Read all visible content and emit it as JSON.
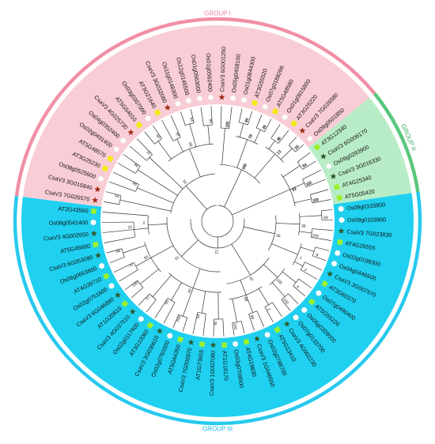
{
  "groups": [
    {
      "label": "GROUP I",
      "fill": "#f9cdd6",
      "ring": "#f08fa5",
      "text": "#e98099"
    },
    {
      "label": "GROUP II",
      "fill": "#b8ecc6",
      "ring": "#59c77c",
      "text": "#3cab5f"
    },
    {
      "label": "GROUP III",
      "fill": "#1fd0f0",
      "ring": "#27c9ee",
      "text": "#1ab6e0"
    }
  ],
  "markers": {
    "star": {
      "color": "#a02a14",
      "meaning": "red star"
    },
    "dark_star": {
      "color": "#2c5a2a",
      "meaning": "dark green star"
    },
    "square": {
      "color": "#f4ea12",
      "meaning": "yellow square"
    },
    "green_square": {
      "color": "#9df02c",
      "meaning": "green square"
    },
    "circle": {
      "color": "#ffffff",
      "meaning": "white circle"
    }
  },
  "leaves": [
    {
      "label": "CsaV3 6G001250",
      "marker": "star",
      "group": 0
    },
    {
      "label": "Os05g0458100",
      "marker": "circle",
      "group": 0
    },
    {
      "label": "Os01g0844300",
      "marker": "circle",
      "group": 0
    },
    {
      "label": "AT3G55520",
      "marker": "square",
      "group": 0
    },
    {
      "label": "Os07g0188266",
      "marker": "circle",
      "group": 0
    },
    {
      "label": "AT5G48580",
      "marker": "square",
      "group": 0
    },
    {
      "label": "Os01g0915800",
      "marker": "circle",
      "group": 0
    },
    {
      "label": "AT3G25220",
      "marker": "square",
      "group": 0
    },
    {
      "label": "CsaV3 7G026580",
      "marker": "star",
      "group": 0
    },
    {
      "label": "Os09g0501850",
      "marker": "circle",
      "group": 0
    },
    {
      "label": "AT3G12340",
      "marker": "green_square",
      "group": 1
    },
    {
      "label": "CsaV3 6G006170",
      "marker": "dark_star",
      "group": 1
    },
    {
      "label": "Os09g0293900",
      "marker": "circle",
      "group": 1
    },
    {
      "label": "CsaV3 3G016330",
      "marker": "dark_star",
      "group": 1
    },
    {
      "label": "AT4G25340",
      "marker": "green_square",
      "group": 1
    },
    {
      "label": "AT5G05420",
      "marker": "green_square",
      "group": 1
    },
    {
      "label": "Os09g0103800",
      "marker": "circle",
      "group": 2
    },
    {
      "label": "Os09g0103900",
      "marker": "circle",
      "group": 2
    },
    {
      "label": "CsaV3 7G023830",
      "marker": "dark_star",
      "group": 2
    },
    {
      "label": "AT4G26555",
      "marker": "green_square",
      "group": 2
    },
    {
      "label": "Os02g0199300",
      "marker": "circle",
      "group": 2
    },
    {
      "label": "Os04g0446500",
      "marker": "circle",
      "group": 2
    },
    {
      "label": "CsaV3 3G007570",
      "marker": "dark_star",
      "group": 2
    },
    {
      "label": "AT3G60370",
      "marker": "green_square",
      "group": 2
    },
    {
      "label": "Os07g0490400",
      "marker": "circle",
      "group": 2
    },
    {
      "label": "AT5G55220",
      "marker": "green_square",
      "group": 2
    },
    {
      "label": "Os06g0309000",
      "marker": "circle",
      "group": 2
    },
    {
      "label": "Os07g0133700",
      "marker": "circle",
      "group": 2
    },
    {
      "label": "CsaV3 4G002230",
      "marker": "dark_star",
      "group": 2
    },
    {
      "label": "AT5G13410",
      "marker": "green_square",
      "group": 2
    },
    {
      "label": "Os02g0788700",
      "marker": "circle",
      "group": 2
    },
    {
      "label": "CsaV3 1G046550",
      "marker": "dark_star",
      "group": 2
    },
    {
      "label": "AT4G19830",
      "marker": "green_square",
      "group": 2
    },
    {
      "label": "Os03g0708500",
      "marker": "circle",
      "group": 2
    },
    {
      "label": "AT1G18170",
      "marker": "green_square",
      "group": 2
    },
    {
      "label": "CsaV3 1G007080",
      "marker": "dark_star",
      "group": 2
    },
    {
      "label": "AT1G73655",
      "marker": "green_square",
      "group": 2
    },
    {
      "label": "CsaV3 7G006970",
      "marker": "dark_star",
      "group": 2
    },
    {
      "label": "AT5G64350",
      "marker": "green_square",
      "group": 2
    },
    {
      "label": "Os02g0760300",
      "marker": "circle",
      "group": 2
    },
    {
      "label": "CsaV3 3G036610",
      "marker": "dark_star",
      "group": 2
    },
    {
      "label": "AT3G10060",
      "marker": "green_square",
      "group": 2
    },
    {
      "label": "Os02g0117600",
      "marker": "circle",
      "group": 2
    },
    {
      "label": "CsaV3 4G037510",
      "marker": "dark_star",
      "group": 2
    },
    {
      "label": "AT1G20810",
      "marker": "green_square",
      "group": 2
    },
    {
      "label": "CsaV3 6G046880",
      "marker": "dark_star",
      "group": 2
    },
    {
      "label": "Os02g0751600",
      "marker": "circle",
      "group": 2
    },
    {
      "label": "AT4G39710",
      "marker": "green_square",
      "group": 2
    },
    {
      "label": "Os06g0663800",
      "marker": "circle",
      "group": 2
    },
    {
      "label": "CsaV3 6G053090",
      "marker": "dark_star",
      "group": 2
    },
    {
      "label": "AT5G45680",
      "marker": "green_square",
      "group": 2
    },
    {
      "label": "CsaV3 4G002650",
      "marker": "dark_star",
      "group": 2
    },
    {
      "label": "Os08g0541400",
      "marker": "circle",
      "group": 2
    },
    {
      "label": "AT2G43560",
      "marker": "green_square",
      "group": 2
    },
    {
      "label": "CsaV3 7G026570",
      "marker": "star",
      "group": 0
    },
    {
      "label": "CsaV3 3G015840",
      "marker": "star",
      "group": 0
    },
    {
      "label": "Os08g0525600",
      "marker": "circle",
      "group": 0
    },
    {
      "label": "AT3G25230",
      "marker": "square",
      "group": 0
    },
    {
      "label": "AT5G48570",
      "marker": "square",
      "group": 0
    },
    {
      "label": "Os02g0491400",
      "marker": "circle",
      "group": 0
    },
    {
      "label": "Os04g0352400",
      "marker": "circle",
      "group": 0
    },
    {
      "label": "CsaV3 4G025730",
      "marker": "star",
      "group": 0
    },
    {
      "label": "AT5G54010",
      "marker": "square",
      "group": 0
    },
    {
      "label": "Os03g0307000",
      "marker": "circle",
      "group": 0
    },
    {
      "label": "AT3G21640",
      "marker": "square",
      "group": 0
    },
    {
      "label": "CsaV3 3G032080",
      "marker": "star",
      "group": 0
    },
    {
      "label": "Os11g0148300",
      "marker": "circle",
      "group": 0
    },
    {
      "label": "Os12g0145500",
      "marker": "circle",
      "group": 0
    },
    {
      "label": "Os01g0563000",
      "marker": "circle",
      "group": 0
    },
    {
      "label": "Os01g0562400",
      "marker": "circle",
      "group": 0
    }
  ],
  "bootstrap_values": [
    "100",
    "96",
    "15",
    "8",
    "10",
    "29",
    "23",
    "100",
    "51",
    "42",
    "43",
    "17",
    "99",
    "100",
    "36",
    "9",
    "3",
    "1",
    "36",
    "4",
    "100",
    "100",
    "2",
    "98",
    "100",
    "99",
    "87",
    "92",
    "59",
    "100",
    "95",
    "57",
    "40",
    "100",
    "75",
    "66",
    "95",
    "23",
    "2",
    "61",
    "21",
    "54",
    "48",
    "46",
    "31",
    "50",
    "98",
    "44",
    "99",
    "96",
    "10",
    "10",
    "40",
    "48",
    "66",
    "38",
    "78",
    "77",
    "48",
    "44",
    "100",
    "100",
    "99"
  ]
}
